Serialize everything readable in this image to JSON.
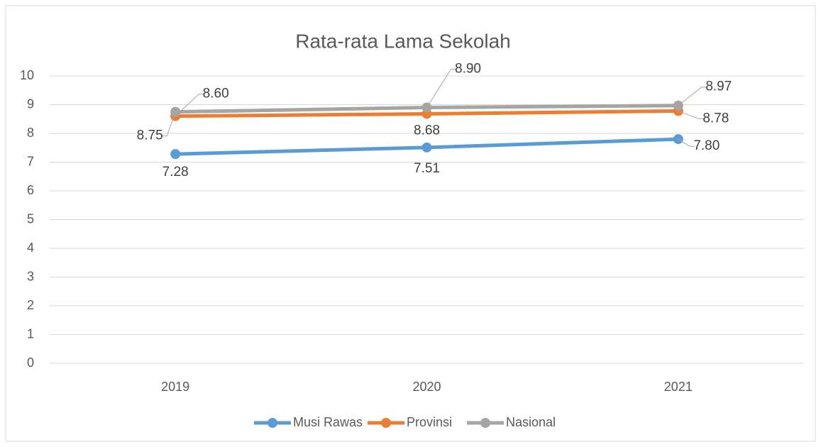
{
  "chart_data": {
    "type": "line",
    "title": "Rata-rata Lama Sekolah",
    "categories": [
      "2019",
      "2020",
      "2021"
    ],
    "series": [
      {
        "name": "Musi Rawas",
        "color": "#5b9bd5",
        "values": [
          7.28,
          7.51,
          7.8
        ],
        "value_labels": [
          "7.28",
          "7.51",
          "7.80"
        ]
      },
      {
        "name": "Provinsi",
        "color": "#ed7d31",
        "values": [
          8.6,
          8.68,
          8.78
        ],
        "value_labels": [
          "8.60",
          "8.68",
          "8.78"
        ]
      },
      {
        "name": "Nasional",
        "color": "#a5a5a5",
        "values": [
          8.75,
          8.9,
          8.97
        ],
        "value_labels": [
          "8.75",
          "8.90",
          "8.97"
        ]
      }
    ],
    "ylim": [
      0,
      10
    ],
    "yticks": [
      0,
      1,
      2,
      3,
      4,
      5,
      6,
      7,
      8,
      9,
      10
    ],
    "grid": true,
    "legend": "bottom"
  }
}
